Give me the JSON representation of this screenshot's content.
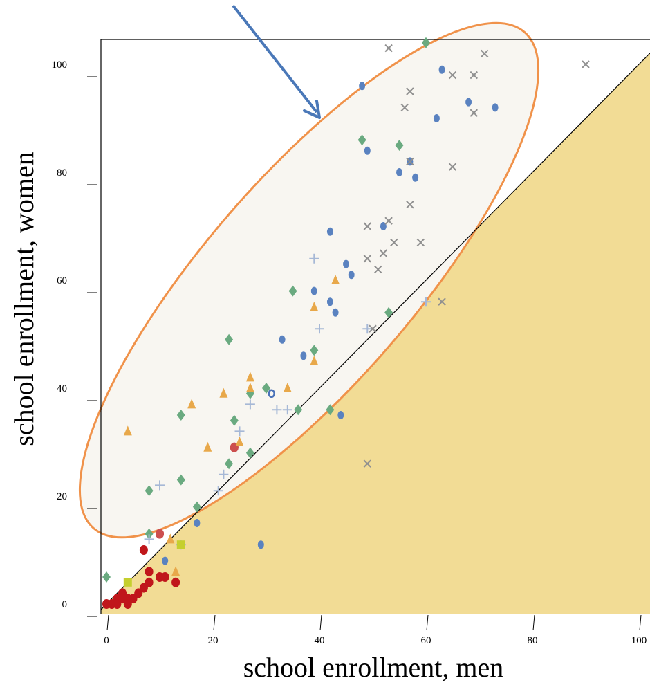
{
  "chart_data": {
    "type": "scatter",
    "title": "",
    "xlabel": "school enrollment, men",
    "ylabel": "school enrollment, women",
    "xlim": [
      -1,
      104
    ],
    "ylim": [
      -1,
      105
    ],
    "x_ticks": [
      0,
      20,
      40,
      60,
      80,
      100
    ],
    "y_ticks": [
      0,
      20,
      40,
      60,
      80,
      100
    ],
    "x_tick_labels": [
      "0",
      "20",
      "40",
      "60",
      "80",
      "100"
    ],
    "y_tick_labels": [
      "0",
      "20",
      "40",
      "60",
      "80",
      "100"
    ],
    "grid": false,
    "legend": "none",
    "reference_line": {
      "label": "",
      "slope": 1,
      "intercept": 0
    },
    "shaded_region": {
      "description": "below the y = x line",
      "color": "#f2dc95"
    },
    "highlight_ellipse": {
      "stroke": "#f0924a",
      "fill": "#f8f6f1"
    },
    "arrow": {
      "color": "#4a78b8"
    },
    "series": [
      {
        "marker": "circle-dark-red",
        "color": "#c0161b",
        "points": [
          [
            0,
            0
          ],
          [
            1,
            0
          ],
          [
            2,
            1
          ],
          [
            2,
            0
          ],
          [
            3,
            2
          ],
          [
            3,
            1
          ],
          [
            4,
            1
          ],
          [
            4,
            0
          ],
          [
            5,
            1
          ],
          [
            6,
            2
          ],
          [
            7,
            3
          ],
          [
            7,
            10
          ],
          [
            8,
            6
          ],
          [
            8,
            4
          ],
          [
            10,
            5
          ],
          [
            10,
            13
          ],
          [
            11,
            5
          ],
          [
            13,
            4
          ],
          [
            24,
            29
          ]
        ]
      },
      {
        "marker": "circle-red",
        "color": "#cc4f4f",
        "points": [
          [
            10,
            13
          ],
          [
            24,
            29
          ]
        ]
      },
      {
        "marker": "dot-blue",
        "color": "#5a82c0",
        "points": [
          [
            11,
            8
          ],
          [
            17,
            15
          ],
          [
            29,
            11
          ],
          [
            33,
            49
          ],
          [
            37,
            46
          ],
          [
            39,
            58
          ],
          [
            42,
            56
          ],
          [
            42,
            69
          ],
          [
            43,
            54
          ],
          [
            45,
            63
          ],
          [
            46,
            61
          ],
          [
            48,
            96
          ],
          [
            49,
            84
          ],
          [
            52,
            70
          ],
          [
            55,
            80
          ],
          [
            57,
            82
          ],
          [
            58,
            79
          ],
          [
            62,
            90
          ],
          [
            63,
            99
          ],
          [
            68,
            93
          ],
          [
            73,
            92
          ],
          [
            44,
            35
          ]
        ]
      },
      {
        "marker": "diamond-green",
        "color": "#6aaa80",
        "points": [
          [
            0,
            5
          ],
          [
            8,
            21
          ],
          [
            8,
            13
          ],
          [
            14,
            35
          ],
          [
            14,
            23
          ],
          [
            17,
            18
          ],
          [
            23,
            49
          ],
          [
            24,
            34
          ],
          [
            23,
            26
          ],
          [
            27,
            39
          ],
          [
            27,
            28
          ],
          [
            30,
            40
          ],
          [
            35,
            58
          ],
          [
            36,
            36
          ],
          [
            39,
            47
          ],
          [
            42,
            36
          ],
          [
            48,
            86
          ],
          [
            53,
            54
          ],
          [
            55,
            85
          ],
          [
            60,
            104
          ]
        ]
      },
      {
        "marker": "triangle-orange",
        "color": "#e8a84a",
        "points": [
          [
            4,
            32
          ],
          [
            12,
            12
          ],
          [
            13,
            6
          ],
          [
            16,
            37
          ],
          [
            19,
            29
          ],
          [
            22,
            39
          ],
          [
            25,
            30
          ],
          [
            27,
            42
          ],
          [
            27,
            40
          ],
          [
            34,
            40
          ],
          [
            39,
            45
          ],
          [
            39,
            55
          ],
          [
            43,
            60
          ]
        ]
      },
      {
        "marker": "cross-lightblue",
        "color": "#a6b8d6",
        "points": [
          [
            8,
            12
          ],
          [
            10,
            22
          ],
          [
            14,
            11
          ],
          [
            21,
            21
          ],
          [
            22,
            24
          ],
          [
            25,
            32
          ],
          [
            27,
            37
          ],
          [
            32,
            36
          ],
          [
            34,
            36
          ],
          [
            39,
            64
          ],
          [
            40,
            51
          ],
          [
            49,
            51
          ],
          [
            60,
            56
          ]
        ]
      },
      {
        "marker": "x-grey",
        "color": "#909090",
        "points": [
          [
            49,
            26
          ],
          [
            49,
            70
          ],
          [
            49,
            64
          ],
          [
            50,
            51
          ],
          [
            51,
            62
          ],
          [
            52,
            65
          ],
          [
            53,
            71
          ],
          [
            53,
            103
          ],
          [
            54,
            67
          ],
          [
            56,
            92
          ],
          [
            57,
            74
          ],
          [
            57,
            95
          ],
          [
            57,
            82
          ],
          [
            59,
            67
          ],
          [
            63,
            56
          ],
          [
            65,
            81
          ],
          [
            65,
            98
          ],
          [
            69,
            98
          ],
          [
            69,
            91
          ],
          [
            71,
            102
          ],
          [
            90,
            100
          ]
        ]
      },
      {
        "marker": "square-yellowgreen",
        "color": "#c5cf2e",
        "points": [
          [
            4,
            4
          ],
          [
            14,
            11
          ]
        ]
      },
      {
        "marker": "ring-blue",
        "color": "#4a72b8",
        "points": [
          [
            31,
            39
          ]
        ]
      }
    ]
  }
}
